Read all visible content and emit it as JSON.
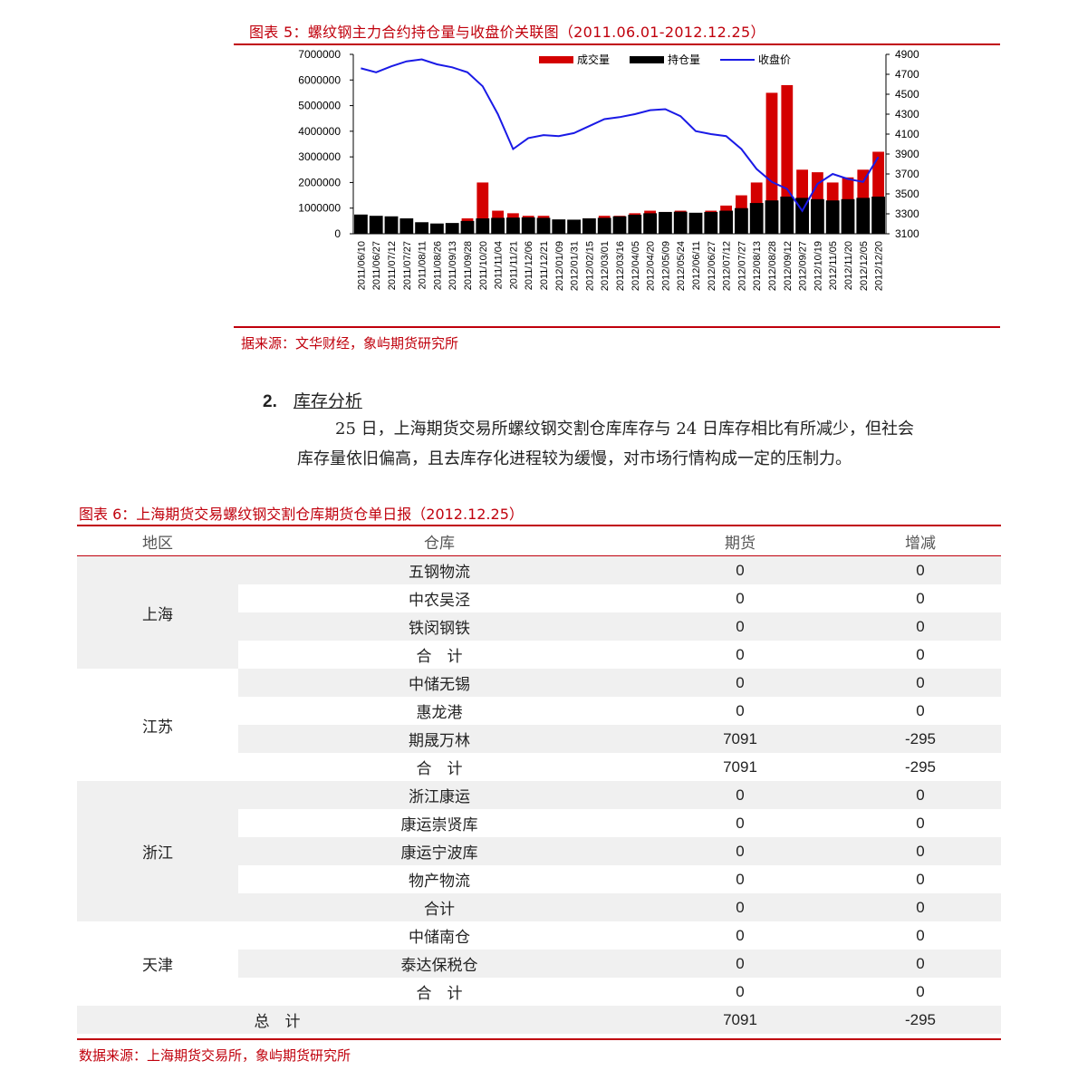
{
  "figure5": {
    "title": "图表 5：螺纹钢主力合约持仓量与收盘价关联图（2011.06.01-2012.12.25）",
    "source": "据来源：文华财经，象屿期货研究所"
  },
  "chart_data": {
    "type": "bar+line",
    "title": "图表 5：螺纹钢主力合约持仓量与收盘价关联图（2011.06.01-2012.12.25）",
    "legend": [
      "成交量",
      "持仓量",
      "收盘价"
    ],
    "legend_position": "top",
    "y_left": {
      "ticks": [
        "7000000",
        "6000000",
        "5000000",
        "4000000",
        "3000000",
        "2000000",
        "1000000",
        "0"
      ],
      "range": [
        0,
        7000000
      ]
    },
    "y_right": {
      "ticks": [
        "4900",
        "4700",
        "4500",
        "4300",
        "4100",
        "3900",
        "3700",
        "3500",
        "3300",
        "3100"
      ],
      "range": [
        3100,
        4900
      ]
    },
    "x_ticks": [
      "2011/06/10",
      "2011/06/27",
      "2011/07/12",
      "2011/07/27",
      "2011/08/11",
      "2011/08/26",
      "2011/09/13",
      "2011/09/28",
      "2011/10/20",
      "2011/11/04",
      "2011/11/21",
      "2011/12/06",
      "2011/12/21",
      "2012/01/09",
      "2012/01/31",
      "2012/02/15",
      "2012/03/01",
      "2012/03/16",
      "2012/04/05",
      "2012/04/20",
      "2012/05/09",
      "2012/05/24",
      "2012/06/11",
      "2012/06/27",
      "2012/07/12",
      "2012/07/27",
      "2012/08/13",
      "2012/08/28",
      "2012/09/12",
      "2012/09/27",
      "2012/10/19",
      "2012/11/05",
      "2012/11/20",
      "2012/12/05",
      "2012/12/20"
    ],
    "series": [
      {
        "name": "收盘价",
        "axis": "right",
        "values": [
          4760,
          4720,
          4780,
          4830,
          4850,
          4800,
          4770,
          4720,
          4580,
          4300,
          3950,
          4060,
          4090,
          4080,
          4110,
          4180,
          4250,
          4270,
          4300,
          4340,
          4350,
          4280,
          4130,
          4100,
          4080,
          3950,
          3750,
          3620,
          3550,
          3330,
          3600,
          3700,
          3650,
          3620,
          3870
        ]
      },
      {
        "name": "持仓量",
        "axis": "left",
        "values": [
          750000,
          700000,
          680000,
          600000,
          450000,
          400000,
          420000,
          500000,
          600000,
          620000,
          630000,
          640000,
          620000,
          560000,
          550000,
          600000,
          620000,
          680000,
          740000,
          800000,
          850000,
          860000,
          820000,
          850000,
          900000,
          1000000,
          1200000,
          1300000,
          1450000,
          1400000,
          1350000,
          1300000,
          1350000,
          1400000,
          1450000
        ]
      },
      {
        "name": "成交量",
        "axis": "left",
        "values": [
          600000,
          500000,
          450000,
          380000,
          300000,
          250000,
          300000,
          600000,
          2000000,
          900000,
          800000,
          700000,
          700000,
          500000,
          500000,
          600000,
          700000,
          700000,
          800000,
          900000,
          850000,
          900000,
          800000,
          900000,
          1100000,
          1500000,
          2000000,
          5500000,
          5800000,
          2500000,
          2400000,
          2000000,
          2200000,
          2500000,
          3200000
        ]
      }
    ]
  },
  "section": {
    "number": "2.",
    "title": "库存分析",
    "para_line1": "25 日，上海期货交易所螺纹钢交割仓库库存与 24 日库存相比有所减少，但社会",
    "para_line2": "库存量依旧偏高，且去库存化进程较为缓慢，对市场行情构成一定的压制力。"
  },
  "figure6": {
    "title": "图表 6：上海期货交易螺纹钢交割仓库期货仓单日报（2012.12.25）",
    "headers": [
      "地区",
      "仓库",
      "期货",
      "增减"
    ],
    "regions": [
      {
        "name": "上海",
        "rows": [
          [
            "五钢物流",
            "0",
            "0"
          ],
          [
            "中农吴泾",
            "0",
            "0"
          ],
          [
            "铁闵钢铁",
            "0",
            "0"
          ],
          [
            "合　计",
            "0",
            "0"
          ]
        ]
      },
      {
        "name": "江苏",
        "rows": [
          [
            "中储无锡",
            "0",
            "0"
          ],
          [
            "惠龙港",
            "0",
            "0"
          ],
          [
            "期晟万林",
            "7091",
            "-295"
          ],
          [
            "合　计",
            "7091",
            "-295"
          ]
        ]
      },
      {
        "name": "浙江",
        "rows": [
          [
            "浙江康运",
            "0",
            "0"
          ],
          [
            "康运崇贤库",
            "0",
            "0"
          ],
          [
            "康运宁波库",
            "0",
            "0"
          ],
          [
            "物产物流",
            "0",
            "0"
          ],
          [
            "合计",
            "0",
            "0"
          ]
        ]
      },
      {
        "name": "天津",
        "rows": [
          [
            "中储南仓",
            "0",
            "0"
          ],
          [
            "泰达保税仓",
            "0",
            "0"
          ],
          [
            "合　计",
            "0",
            "0"
          ]
        ]
      }
    ],
    "total": {
      "label": "总　计",
      "futures": "7091",
      "change": "-295"
    },
    "source": "数据来源：上海期货交易所，象屿期货研究所"
  },
  "colors": {
    "accent": "#c0000c",
    "price_line": "#1a1ae6",
    "volume": "#d40000",
    "open_interest": "#000000"
  }
}
